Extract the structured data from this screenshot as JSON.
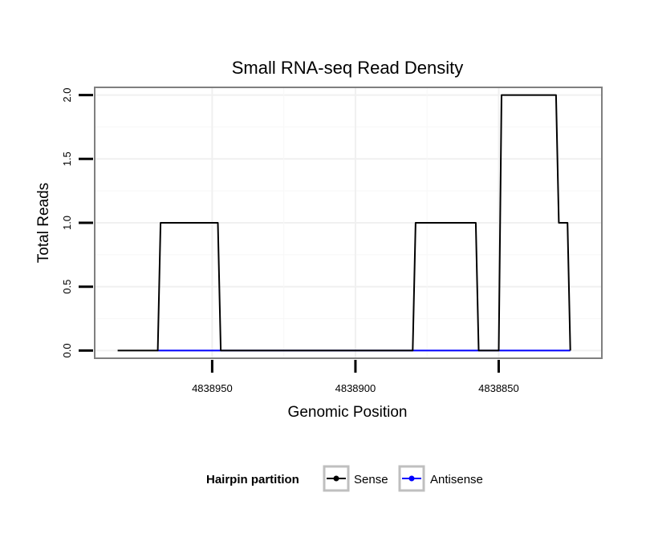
{
  "chart_data": {
    "type": "line",
    "title": "Small RNA-seq Read Density",
    "xlabel": "Genomic Position",
    "ylabel": "Total Reads",
    "x_reversed": true,
    "xlim": [
      4838991,
      4838814
    ],
    "ylim": [
      -0.06,
      2.06
    ],
    "x_ticks": [
      4838950,
      4838900,
      4838850
    ],
    "x_tick_labels": [
      "4838950",
      "4838900",
      "4838850"
    ],
    "y_ticks": [
      0.0,
      0.5,
      1.0,
      1.5,
      2.0
    ],
    "y_tick_labels": [
      "0.0",
      "0.5",
      "1.0",
      "1.5",
      "2.0"
    ],
    "grid": true,
    "legend": {
      "title": "Hairpin partition",
      "position": "bottom",
      "entries": [
        "Sense",
        "Antisense"
      ]
    },
    "series": [
      {
        "name": "Sense",
        "color": "#000000",
        "x": [
          4838983,
          4838969,
          4838968,
          4838948,
          4838947,
          4838880,
          4838879,
          4838858,
          4838857,
          4838850,
          4838849,
          4838830,
          4838829,
          4838827,
          4838826,
          4838825
        ],
        "y": [
          0,
          0,
          1,
          1,
          0,
          0,
          1,
          1,
          0,
          0,
          2,
          2,
          1,
          1,
          1,
          0
        ]
      },
      {
        "name": "Antisense",
        "color": "#0000ff",
        "x": [
          4838969,
          4838825
        ],
        "y": [
          0,
          0
        ]
      }
    ]
  }
}
